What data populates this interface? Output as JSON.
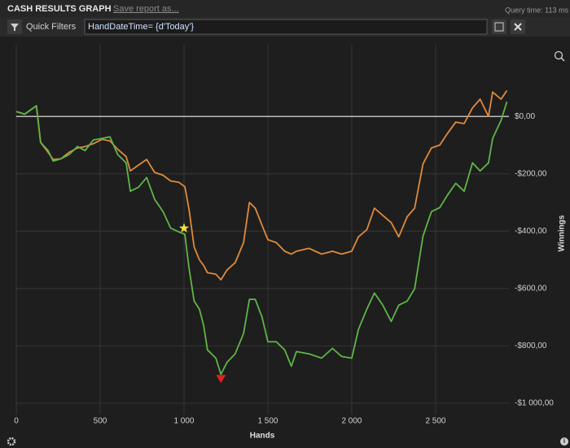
{
  "header": {
    "title": "CASH RESULTS GRAPH",
    "save_link": "Save report as...",
    "query_time": "Query time: 113 ms"
  },
  "filter_bar": {
    "label": "Quick Filters",
    "query": "HandDateTime= {d'Today'}"
  },
  "chart_data": {
    "type": "line",
    "x_label": "Hands",
    "y_label": "Winnings",
    "x": [
      0,
      50,
      120,
      145,
      190,
      220,
      265,
      315,
      365,
      410,
      460,
      510,
      558,
      605,
      655,
      680,
      728,
      777,
      825,
      875,
      920,
      970,
      1005,
      1030,
      1060,
      1092,
      1117,
      1140,
      1190,
      1220,
      1257,
      1305,
      1355,
      1390,
      1425,
      1465,
      1500,
      1550,
      1600,
      1640,
      1670,
      1745,
      1820,
      1885,
      1940,
      2000,
      2040,
      2090,
      2135,
      2185,
      2235,
      2280,
      2330,
      2375,
      2425,
      2475,
      2525,
      2570,
      2620,
      2670,
      2720,
      2765,
      2815,
      2840,
      2890,
      2925
    ],
    "series": [
      {
        "color": "#e08a3c",
        "values": [
          17,
          8,
          37,
          -91,
          -125,
          -150,
          -148,
          -125,
          -110,
          -105,
          -95,
          -80,
          -85,
          -115,
          -140,
          -190,
          -170,
          -150,
          -195,
          -205,
          -225,
          -230,
          -245,
          -325,
          -455,
          -500,
          -520,
          -545,
          -550,
          -570,
          -535,
          -510,
          -440,
          -300,
          -320,
          -380,
          -430,
          -440,
          -470,
          -480,
          -470,
          -460,
          -480,
          -470,
          -480,
          -470,
          -420,
          -395,
          -320,
          -345,
          -370,
          -420,
          -350,
          -320,
          -165,
          -110,
          -100,
          -60,
          -20,
          -25,
          30,
          60,
          0,
          85,
          60,
          90
        ]
      },
      {
        "color": "#5fb548",
        "values": [
          17,
          8,
          37,
          -91,
          -119,
          -156,
          -148,
          -133,
          -105,
          -119,
          -82,
          -77,
          -71,
          -133,
          -162,
          -261,
          -247,
          -213,
          -289,
          -332,
          -389,
          -403,
          -411,
          -530,
          -644,
          -672,
          -729,
          -814,
          -843,
          -899,
          -857,
          -828,
          -757,
          -638,
          -638,
          -700,
          -786,
          -786,
          -814,
          -871,
          -820,
          -828,
          -843,
          -809,
          -837,
          -843,
          -743,
          -672,
          -616,
          -658,
          -715,
          -658,
          -644,
          -601,
          -417,
          -332,
          -318,
          -275,
          -233,
          -261,
          -162,
          -190,
          -162,
          -77,
          -14,
          51
        ]
      }
    ],
    "markers": [
      {
        "x": 1000,
        "y": -390,
        "shape": "star",
        "color": "#f5e33b"
      },
      {
        "x": 1220,
        "y": -899,
        "shape": "triangle-down",
        "color": "#e02020"
      }
    ],
    "xlim": [
      0,
      2937
    ],
    "ylim": [
      -1040,
      250
    ],
    "xticks": [
      0,
      500,
      {
        "value": 1000,
        "label": "1 000"
      },
      {
        "value": 1500,
        "label": "1 500"
      },
      {
        "value": 2000,
        "label": "2 000"
      },
      {
        "value": 2500,
        "label": "2 500"
      }
    ],
    "yticks": [
      {
        "value": 0,
        "label": "$0,00"
      },
      {
        "value": -200,
        "label": "-$200,00"
      },
      {
        "value": -400,
        "label": "-$400,00"
      },
      {
        "value": -600,
        "label": "-$600,00"
      },
      {
        "value": -800,
        "label": "-$800,00"
      },
      {
        "value": -1000,
        "label": "-$1 000,00"
      }
    ],
    "grid": true,
    "zero_line": true
  }
}
